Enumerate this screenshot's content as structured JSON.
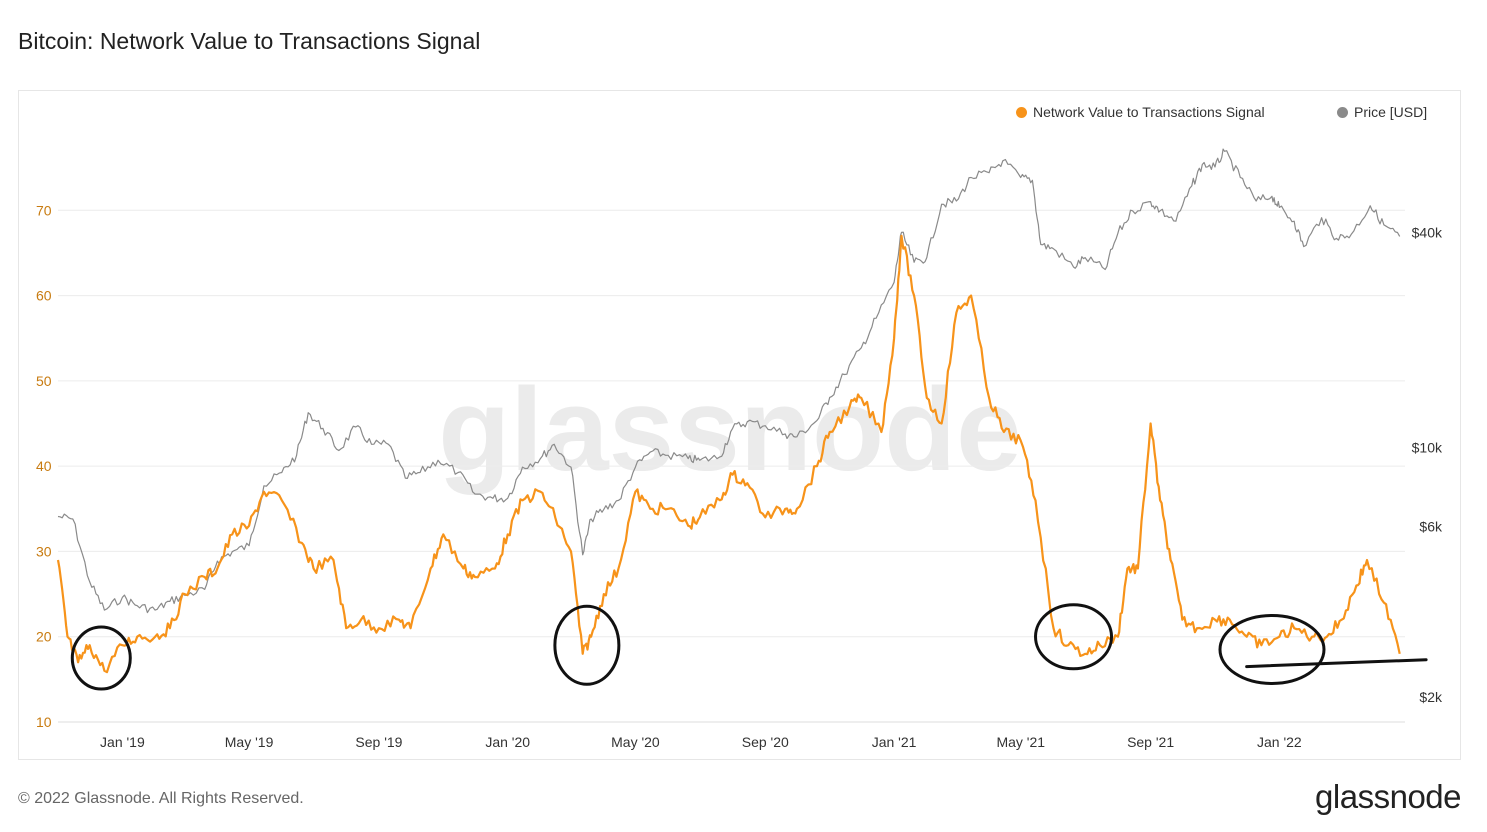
{
  "page": {
    "title": "Bitcoin: Network Value to Transactions Signal",
    "copyright": "© 2022 Glassnode. All Rights Reserved.",
    "brand": "glassnode",
    "watermark": "glassnode"
  },
  "chart_data": {
    "type": "line",
    "title": "Bitcoin: Network Value to Transactions Signal",
    "x_range": [
      "2018-11-01",
      "2022-04-30"
    ],
    "x_ticks": [
      "Jan '19",
      "May '19",
      "Sep '19",
      "Jan '20",
      "May '20",
      "Sep '20",
      "Jan '21",
      "May '21",
      "Sep '21",
      "Jan '22"
    ],
    "y_left": {
      "ticks": [
        10,
        20,
        30,
        40,
        50,
        60,
        70
      ],
      "range": [
        10,
        80
      ],
      "color": "#c87b10"
    },
    "y_right": {
      "scale": "log",
      "ticks": [
        "$2k",
        "$6k",
        "$10k",
        "$40k"
      ],
      "tick_values": [
        2000,
        6000,
        10000,
        40000
      ],
      "range": [
        1700,
        80000
      ]
    },
    "grid": true,
    "legend_position": "top-right",
    "series": [
      {
        "name": "Network Value to Transactions Signal",
        "axis": "left",
        "color": "#f7931a",
        "x": [
          "2018-11-01",
          "2018-11-10",
          "2018-11-20",
          "2018-12-01",
          "2018-12-15",
          "2019-01-01",
          "2019-01-15",
          "2019-02-01",
          "2019-02-15",
          "2019-03-01",
          "2019-03-20",
          "2019-04-01",
          "2019-04-15",
          "2019-05-01",
          "2019-05-15",
          "2019-06-01",
          "2019-06-20",
          "2019-07-01",
          "2019-07-20",
          "2019-08-01",
          "2019-08-15",
          "2019-09-01",
          "2019-09-20",
          "2019-10-01",
          "2019-10-20",
          "2019-11-01",
          "2019-11-20",
          "2019-12-01",
          "2019-12-20",
          "2020-01-01",
          "2020-01-15",
          "2020-02-01",
          "2020-02-15",
          "2020-03-01",
          "2020-03-12",
          "2020-03-20",
          "2020-04-01",
          "2020-04-15",
          "2020-05-01",
          "2020-05-15",
          "2020-06-01",
          "2020-06-20",
          "2020-07-01",
          "2020-07-20",
          "2020-08-01",
          "2020-08-15",
          "2020-09-01",
          "2020-09-20",
          "2020-10-01",
          "2020-10-20",
          "2020-11-01",
          "2020-11-20",
          "2020-12-01",
          "2020-12-20",
          "2021-01-01",
          "2021-01-08",
          "2021-01-20",
          "2021-02-01",
          "2021-02-15",
          "2021-03-01",
          "2021-03-15",
          "2021-04-01",
          "2021-04-15",
          "2021-05-01",
          "2021-05-15",
          "2021-06-01",
          "2021-06-15",
          "2021-07-01",
          "2021-07-15",
          "2021-08-01",
          "2021-08-10",
          "2021-08-20",
          "2021-09-01",
          "2021-09-10",
          "2021-09-20",
          "2021-10-01",
          "2021-10-15",
          "2021-11-01",
          "2021-11-15",
          "2021-12-01",
          "2021-12-15",
          "2022-01-01",
          "2022-01-15",
          "2022-02-01",
          "2022-02-15",
          "2022-03-01",
          "2022-03-15",
          "2022-03-25",
          "2022-04-10",
          "2022-04-25"
        ],
        "values": [
          29,
          20,
          17,
          19,
          16,
          19,
          20,
          20,
          21,
          25,
          27,
          28,
          32,
          33,
          37,
          36,
          31,
          28,
          29,
          21,
          22,
          21,
          22,
          21,
          28,
          32,
          28,
          27,
          28,
          32,
          36,
          37,
          34,
          30,
          18,
          20,
          25,
          28,
          37,
          35,
          35,
          33,
          34,
          36,
          39,
          38,
          34,
          35,
          35,
          40,
          44,
          47,
          48,
          44,
          55,
          67,
          60,
          48,
          45,
          58,
          60,
          48,
          44,
          43,
          36,
          21,
          19,
          18,
          19,
          20,
          28,
          28,
          45,
          36,
          29,
          22,
          21,
          22,
          22,
          20,
          19,
          20,
          21,
          20,
          20,
          22,
          26,
          29,
          24,
          18
        ]
      },
      {
        "name": "Price [USD]",
        "axis": "right",
        "color": "#8a8a8a",
        "x": [
          "2018-11-01",
          "2018-11-15",
          "2018-12-01",
          "2018-12-15",
          "2019-01-01",
          "2019-01-15",
          "2019-02-01",
          "2019-02-15",
          "2019-03-01",
          "2019-03-20",
          "2019-04-01",
          "2019-04-15",
          "2019-05-01",
          "2019-05-15",
          "2019-06-01",
          "2019-06-15",
          "2019-06-26",
          "2019-07-10",
          "2019-07-25",
          "2019-08-10",
          "2019-08-25",
          "2019-09-10",
          "2019-09-26",
          "2019-10-10",
          "2019-10-27",
          "2019-11-15",
          "2019-12-01",
          "2019-12-18",
          "2020-01-01",
          "2020-01-15",
          "2020-02-01",
          "2020-02-14",
          "2020-03-01",
          "2020-03-12",
          "2020-03-20",
          "2020-04-01",
          "2020-04-15",
          "2020-05-01",
          "2020-05-15",
          "2020-06-01",
          "2020-06-20",
          "2020-07-01",
          "2020-07-20",
          "2020-08-01",
          "2020-08-15",
          "2020-09-01",
          "2020-09-20",
          "2020-10-01",
          "2020-10-20",
          "2020-11-01",
          "2020-11-15",
          "2020-12-01",
          "2020-12-15",
          "2021-01-01",
          "2021-01-08",
          "2021-01-20",
          "2021-02-01",
          "2021-02-15",
          "2021-03-01",
          "2021-03-15",
          "2021-04-01",
          "2021-04-14",
          "2021-05-01",
          "2021-05-12",
          "2021-05-20",
          "2021-06-01",
          "2021-06-20",
          "2021-07-01",
          "2021-07-20",
          "2021-08-01",
          "2021-08-15",
          "2021-09-01",
          "2021-09-10",
          "2021-09-25",
          "2021-10-10",
          "2021-10-20",
          "2021-11-01",
          "2021-11-10",
          "2021-11-25",
          "2021-12-10",
          "2021-12-25",
          "2022-01-01",
          "2022-01-15",
          "2022-01-24",
          "2022-02-10",
          "2022-02-24",
          "2022-03-10",
          "2022-03-28",
          "2022-04-10",
          "2022-04-25"
        ],
        "values": [
          6400,
          6300,
          4200,
          3500,
          3800,
          3600,
          3500,
          3700,
          3850,
          4000,
          4800,
          5100,
          5300,
          7800,
          8500,
          9500,
          12500,
          11300,
          9800,
          11400,
          10200,
          10200,
          8200,
          8500,
          9200,
          8500,
          7400,
          7200,
          7200,
          8800,
          9300,
          10200,
          8800,
          5000,
          6300,
          6700,
          7100,
          8800,
          9700,
          9500,
          9300,
          9200,
          9400,
          11300,
          11800,
          11500,
          10900,
          10700,
          11900,
          13800,
          16000,
          19000,
          23000,
          29000,
          40000,
          33000,
          34000,
          48000,
          49000,
          57000,
          58800,
          63500,
          57000,
          56000,
          37000,
          36000,
          32000,
          34000,
          31500,
          39800,
          46000,
          48800,
          46000,
          43000,
          54000,
          62000,
          61000,
          67500,
          57000,
          49000,
          50500,
          47000,
          43000,
          36500,
          44000,
          38500,
          39500,
          47500,
          42000,
          39000
        ]
      }
    ],
    "annotations": [
      {
        "shape": "ellipse",
        "note": "hand-drawn circle",
        "x": "2018-12-12",
        "y": 17.5
      },
      {
        "shape": "ellipse",
        "note": "hand-drawn circle",
        "x": "2020-03-16",
        "y": 19
      },
      {
        "shape": "ellipse",
        "note": "hand-drawn circle",
        "x": "2021-06-20",
        "y": 20
      },
      {
        "shape": "ellipse",
        "note": "hand-drawn circle",
        "x": "2021-12-25",
        "y": 18.5
      },
      {
        "shape": "line",
        "note": "hand-drawn support line",
        "x": [
          "2021-12-01",
          "2022-05-20"
        ],
        "y": [
          16.5,
          17.3
        ]
      }
    ]
  }
}
